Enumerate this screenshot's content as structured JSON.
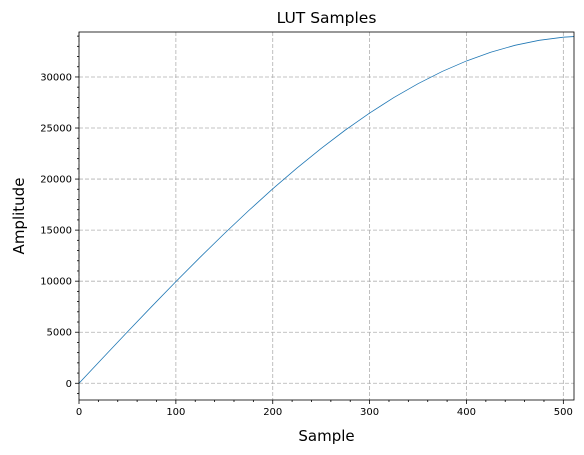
{
  "chart_data": {
    "type": "line",
    "title": "LUT Samples",
    "xlabel": "Sample",
    "ylabel": "Amplitude",
    "xlim": [
      0,
      511
    ],
    "ylim": [
      -1638,
      34404
    ],
    "x_ticks": [
      0,
      100,
      200,
      300,
      400,
      500
    ],
    "y_ticks": [
      0,
      5000,
      10000,
      15000,
      20000,
      25000,
      30000
    ],
    "x_minor_step": 20,
    "y_minor_step": 1000,
    "grid": true,
    "series": [
      {
        "color": "#1f77b4",
        "x": [
          0,
          25,
          50,
          75,
          100,
          125,
          150,
          175,
          200,
          225,
          250,
          275,
          300,
          325,
          350,
          375,
          400,
          425,
          450,
          475,
          500,
          511
        ],
        "y": [
          0,
          2522,
          5031,
          7512,
          9953,
          12339,
          14657,
          16895,
          19041,
          21082,
          23006,
          24805,
          26466,
          27981,
          29342,
          30541,
          31570,
          32425,
          33100,
          33591,
          33896,
          33956
        ]
      }
    ]
  }
}
